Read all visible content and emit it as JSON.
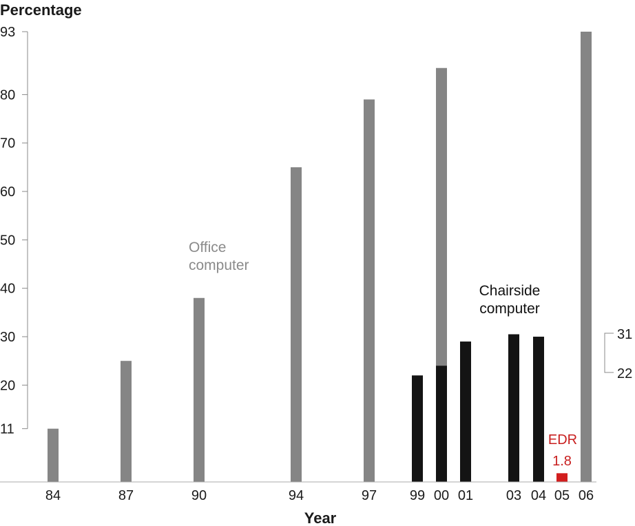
{
  "chart_data": {
    "type": "bar",
    "ylabel": "Percentage",
    "xlabel": "Year",
    "y_ticks": [
      "11",
      "20",
      "30",
      "40",
      "50",
      "60",
      "70",
      "80",
      "93"
    ],
    "ylim": [
      0,
      93
    ],
    "colors": {
      "office": "#858585",
      "chairside": "#141414",
      "edr": "#d21e1e"
    },
    "categories": [
      "84",
      "87",
      "90",
      "94",
      "97",
      "99",
      "00",
      "01",
      "03",
      "04",
      "05",
      "06"
    ],
    "series": [
      {
        "key": "office",
        "values": [
          11,
          25,
          38,
          65,
          79,
          null,
          85.5,
          null,
          null,
          null,
          null,
          93
        ]
      },
      {
        "key": "chairside",
        "values": [
          null,
          null,
          null,
          null,
          null,
          22,
          24,
          29,
          30.5,
          30,
          null,
          null
        ]
      },
      {
        "key": "edr",
        "values": [
          null,
          null,
          null,
          null,
          null,
          null,
          null,
          null,
          null,
          null,
          1.8,
          null
        ]
      }
    ],
    "annotations": {
      "office_line1": "Office",
      "office_line2": "computer",
      "chairside_line1": "Chairside",
      "chairside_line2": "computer",
      "edr_label": "EDR",
      "edr_value": "1.8"
    },
    "range_bracket": {
      "top": "31",
      "bottom": "22"
    }
  }
}
